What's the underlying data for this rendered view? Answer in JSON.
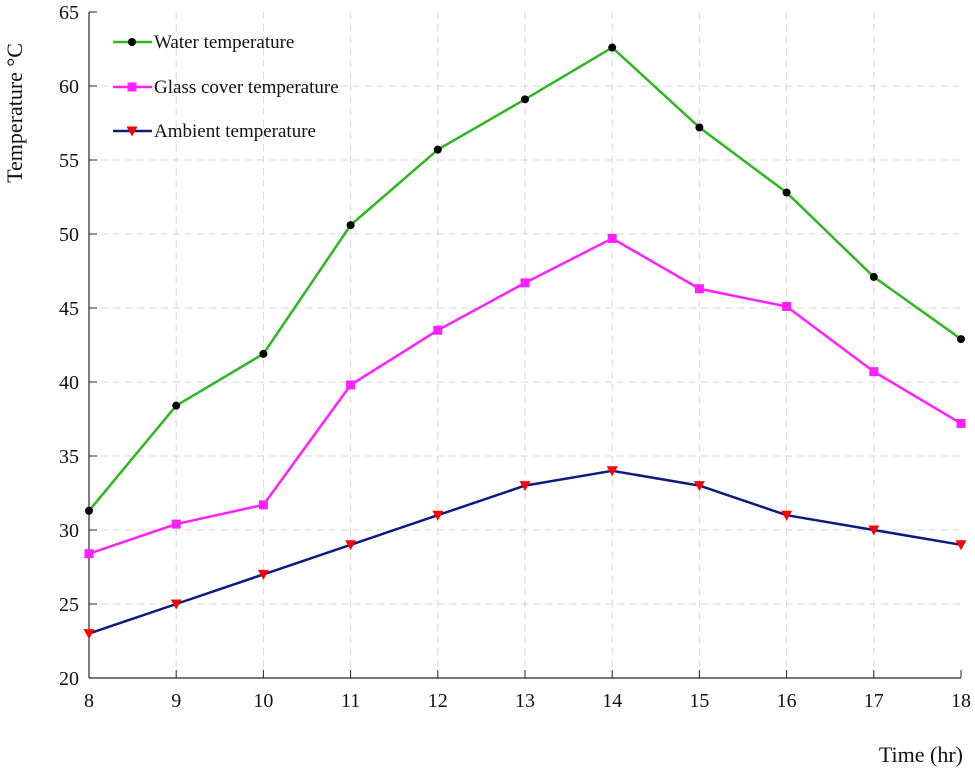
{
  "chart_data": {
    "type": "line",
    "title": "",
    "xlabel": "Time (hr)",
    "ylabel": "Temperature °C",
    "x": [
      8,
      9,
      10,
      11,
      12,
      13,
      14,
      15,
      16,
      17,
      18
    ],
    "xlim": [
      8,
      18
    ],
    "ylim": [
      20,
      65
    ],
    "xticks": [
      8,
      9,
      10,
      11,
      12,
      13,
      14,
      15,
      16,
      17,
      18
    ],
    "yticks": [
      20,
      25,
      30,
      35,
      40,
      45,
      50,
      55,
      60,
      65
    ],
    "grid": true,
    "legend_position": "top-left",
    "series": [
      {
        "name": "Water temperature",
        "color": "#2db81f",
        "marker": "circle",
        "marker_color": "#000000",
        "values": [
          31.3,
          38.4,
          41.9,
          50.6,
          55.7,
          59.1,
          62.6,
          57.2,
          52.8,
          47.1,
          42.9
        ]
      },
      {
        "name": "Glass cover temperature",
        "color": "#ff1fff",
        "marker": "square",
        "marker_color": "#ff1fff",
        "values": [
          28.4,
          30.4,
          31.7,
          39.8,
          43.5,
          46.7,
          49.7,
          46.3,
          45.1,
          40.7,
          37.2
        ]
      },
      {
        "name": "Ambient temperature",
        "color": "#0d1a80",
        "marker": "triangle-down",
        "marker_color": "#ff0000",
        "values": [
          23,
          25,
          27,
          29,
          31,
          33,
          34,
          33,
          31,
          30,
          29
        ]
      }
    ]
  }
}
